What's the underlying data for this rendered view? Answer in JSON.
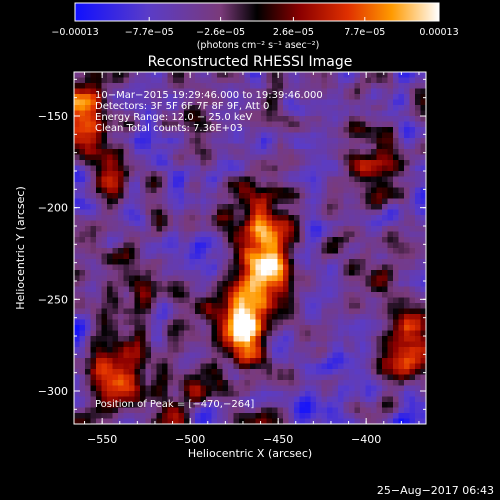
{
  "chart_data": {
    "type": "heatmap",
    "title": "Reconstructed RHESSI Image",
    "xlabel": "Heliocentric X (arcsec)",
    "ylabel": "Heliocentric Y (arcsec)",
    "xlim": [
      -566,
      -366
    ],
    "ylim": [
      -318,
      -126
    ],
    "xticks": [
      -550,
      -500,
      -450,
      -400
    ],
    "yticks": [
      -150,
      -200,
      -250,
      -300
    ],
    "xtick_labels": [
      "−550",
      "−500",
      "−450",
      "−400"
    ],
    "ytick_labels": [
      "−150",
      "−200",
      "−250",
      "−300"
    ],
    "colormap": "RHESSI (blue-purple-red-yellow-white)",
    "colorbar": {
      "min": -0.00013,
      "max": 0.00013,
      "tick_values": [
        -0.00013,
        -7.7e-05,
        -2.6e-05,
        2.6e-05,
        7.7e-05,
        0.00013
      ],
      "tick_labels": [
        "−0.00013",
        "−7.7e−05",
        "−2.6e−05",
        "2.6e−05",
        "7.7e−05",
        "0.00013"
      ],
      "unit_label": "(photons cm⁻² s⁻¹ asec⁻²)"
    },
    "peak_position": [
      -470,
      -264
    ],
    "annotations": {
      "time_range": "10−Mar−2015 19:29:46.000 to 19:39:46.000",
      "detectors": "Detectors: 3F 5F 6F 7F 8F 9F, Att 0",
      "energy": "Energy Range: 12.0 − 25.0 keV",
      "clean": "Clean    Total counts: 7.36E+03",
      "peak": "Position of Peak = [−470,−264]"
    },
    "footer_timestamp": "25−Aug−2017 06:43"
  }
}
